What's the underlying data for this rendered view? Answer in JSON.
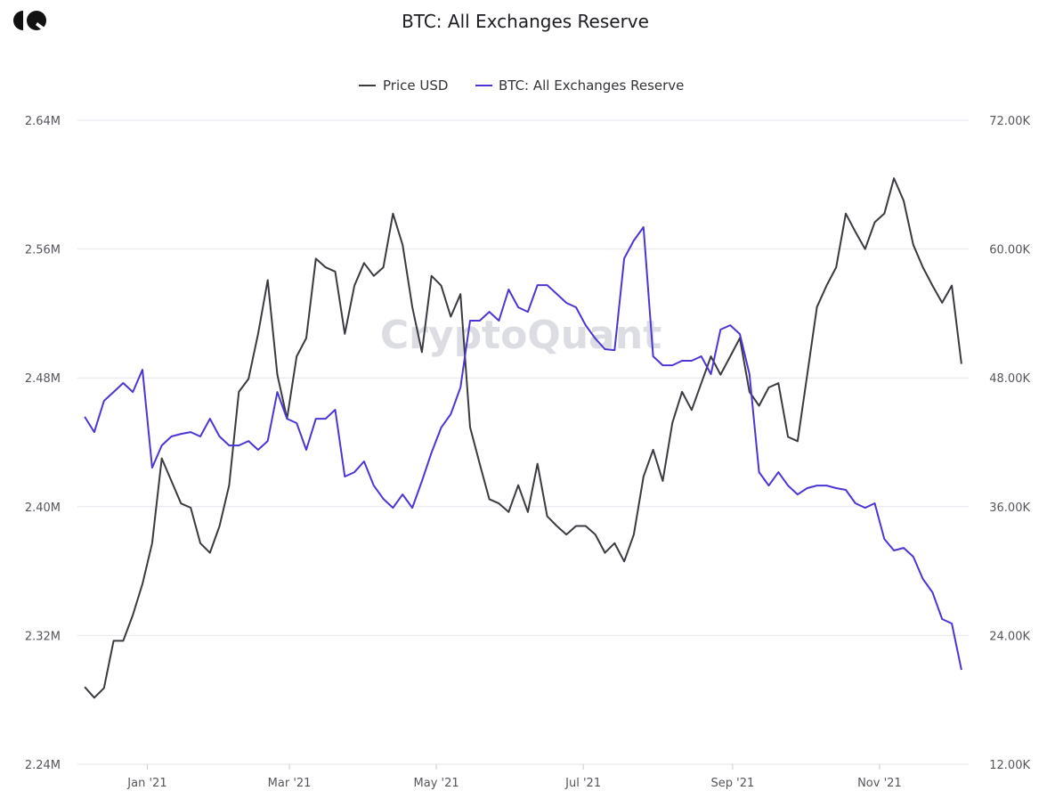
{
  "header": {
    "title": "BTC: All Exchanges Reserve",
    "logo_text": "CQ"
  },
  "watermark": "CryptoQuant",
  "colors": {
    "price": "#3a3a40",
    "reserve": "#4a36d4",
    "grid": "#e4e4ec"
  },
  "chart_data": {
    "type": "line",
    "title": "BTC: All Exchanges Reserve",
    "legend": [
      "Price USD",
      "BTC: All Exchanges Reserve"
    ],
    "legend_position": "top-center",
    "grid": true,
    "x": {
      "start": "2020-12-06",
      "step_days": 4,
      "xlim": [
        "2020-12-03",
        "2021-12-08"
      ],
      "ticks": [
        {
          "date": "2021-01-01",
          "label": "Jan '21"
        },
        {
          "date": "2021-03-01",
          "label": "Mar '21"
        },
        {
          "date": "2021-05-01",
          "label": "May '21"
        },
        {
          "date": "2021-07-01",
          "label": "Jul '21"
        },
        {
          "date": "2021-09-01",
          "label": "Sep '21"
        },
        {
          "date": "2021-11-01",
          "label": "Nov '21"
        }
      ]
    },
    "y_left": {
      "label": "BTC: All Exchanges Reserve",
      "ylim": [
        2.24,
        2.64
      ],
      "unit": "M",
      "ticks": [
        "2.64M",
        "2.56M",
        "2.48M",
        "2.40M",
        "2.32M",
        "2.24M"
      ]
    },
    "y_right": {
      "label": "Price USD",
      "ylim": [
        12,
        72
      ],
      "unit": "K",
      "ticks": [
        "72.00K",
        "60.00K",
        "48.00K",
        "36.00K",
        "24.00K",
        "12.00K"
      ]
    },
    "series": [
      {
        "name": "Price USD",
        "axis": "right",
        "values": [
          19.2,
          18.2,
          19.1,
          23.5,
          23.5,
          25.9,
          28.8,
          32.6,
          40.5,
          38.4,
          36.3,
          35.9,
          32.6,
          31.7,
          34.2,
          38.0,
          46.7,
          47.9,
          52.1,
          57.1,
          48.3,
          44.2,
          50.0,
          51.7,
          59.1,
          58.3,
          57.9,
          52.1,
          56.6,
          58.7,
          57.5,
          58.3,
          63.3,
          60.4,
          54.6,
          50.4,
          57.5,
          56.6,
          53.7,
          55.8,
          43.4,
          40.0,
          36.7,
          36.3,
          35.5,
          38.0,
          35.5,
          40.0,
          35.1,
          34.2,
          33.4,
          34.2,
          34.2,
          33.4,
          31.7,
          32.6,
          30.9,
          33.4,
          38.8,
          41.3,
          38.4,
          43.8,
          46.7,
          45.0,
          47.5,
          50.0,
          48.3,
          50.0,
          51.7,
          46.7,
          45.4,
          47.1,
          47.5,
          42.5,
          42.1,
          48.3,
          54.6,
          56.6,
          58.3,
          63.3,
          61.6,
          60.0,
          62.5,
          63.3,
          66.6,
          64.5,
          60.4,
          58.3,
          56.6,
          55.0,
          56.6,
          49.3
        ]
      },
      {
        "name": "BTC: All Exchanges Reserve",
        "axis": "left",
        "values": [
          2.4558,
          2.4463,
          2.4657,
          2.4712,
          2.4768,
          2.4712,
          2.4851,
          2.4242,
          2.438,
          2.4436,
          2.4452,
          2.4463,
          2.4436,
          2.4546,
          2.4436,
          2.438,
          2.438,
          2.4408,
          2.4353,
          2.4408,
          2.4712,
          2.4546,
          2.4519,
          2.4353,
          2.4546,
          2.4546,
          2.4602,
          2.4187,
          2.4214,
          2.4281,
          2.4131,
          2.4048,
          2.3993,
          2.4076,
          2.3993,
          2.4159,
          2.4336,
          2.4491,
          2.4574,
          2.474,
          2.5155,
          2.5155,
          2.521,
          2.5155,
          2.5349,
          2.5238,
          2.521,
          2.5376,
          2.5376,
          2.5321,
          2.5266,
          2.5238,
          2.5127,
          2.5044,
          2.4978,
          2.4972,
          2.5542,
          2.5653,
          2.5736,
          2.4934,
          2.4878,
          2.4878,
          2.4906,
          2.4906,
          2.4934,
          2.4823,
          2.51,
          2.5127,
          2.5072,
          2.4823,
          2.4214,
          2.4131,
          2.4214,
          2.4131,
          2.4076,
          2.4115,
          2.4131,
          2.4131,
          2.4115,
          2.4104,
          2.4021,
          2.3993,
          2.4021,
          2.3799,
          2.3728,
          2.3744,
          2.3689,
          2.3551,
          2.3468,
          2.3302,
          2.3274,
          2.2986
        ]
      }
    ]
  }
}
